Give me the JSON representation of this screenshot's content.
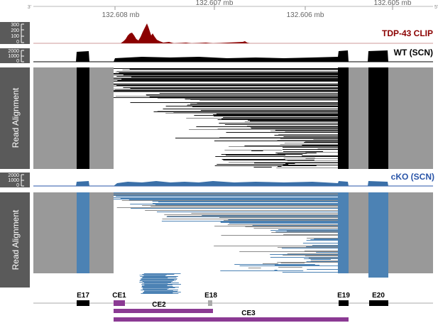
{
  "coordinate_axis": {
    "left_end": "3'",
    "right_end": "5'",
    "tick_labels": [
      "132.608 mb",
      "132.607 mb",
      "132.606 mb",
      "132.605 mb"
    ]
  },
  "tracks": {
    "clip": {
      "title": "TDP-43 CLIP",
      "scale": [
        "300",
        "200",
        "100",
        "0"
      ],
      "color": "#8b0000"
    },
    "wt": {
      "title": "WT (SCN)",
      "scale": [
        "2000",
        "1000",
        "0"
      ],
      "color": "#000000"
    },
    "wt_alignment": {
      "label": "Read Alignment",
      "read_color": "#111111",
      "exon_fill": "#999999"
    },
    "cko": {
      "title": "cKO (SCN)",
      "scale": [
        "2000",
        "1000",
        "0"
      ],
      "color": "#2a55a8"
    },
    "cko_alignment": {
      "label": "Read Alignment",
      "read_color": "#4c82b4",
      "exon_fill": "#999999"
    }
  },
  "gene_model": {
    "exons": [
      "E17",
      "CE1",
      "E18",
      "E19",
      "E20"
    ],
    "cryptic": [
      "CE2",
      "CE3"
    ],
    "exon_color": "#000000",
    "cryptic_color": "#8b3a93",
    "e18_color": "#aaaaaa"
  }
}
